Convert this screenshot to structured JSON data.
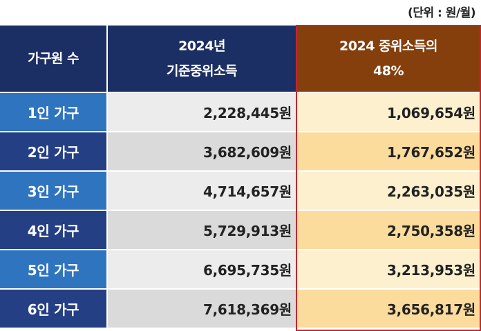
{
  "unit_note": "(단위 : 원/월)",
  "header": {
    "household": "가구원 수",
    "median_line1": "2024년",
    "median_line2": "기준중위소득",
    "pct_line1": "2024 중위소득의",
    "pct_line2": "48%"
  },
  "rows": [
    {
      "household": "1인 가구",
      "median": "2,228,445원",
      "pct48": "1,069,654원"
    },
    {
      "household": "2인 가구",
      "median": "3,682,609원",
      "pct48": "1,767,652원"
    },
    {
      "household": "3인 가구",
      "median": "4,714,657원",
      "pct48": "2,263,035원"
    },
    {
      "household": "4인 가구",
      "median": "5,729,913원",
      "pct48": "2,750,358원"
    },
    {
      "household": "5인 가구",
      "median": "6,695,735원",
      "pct48": "3,213,953원"
    },
    {
      "household": "6인 가구",
      "median": "7,618,369원",
      "pct48": "3,656,817원"
    }
  ],
  "colors": {
    "header_navy": "#1c2f64",
    "header_brown": "#853f0d",
    "row_blue_light": "#2f74be",
    "row_blue_dark": "#253f85",
    "highlight_border": "#c0282d"
  }
}
